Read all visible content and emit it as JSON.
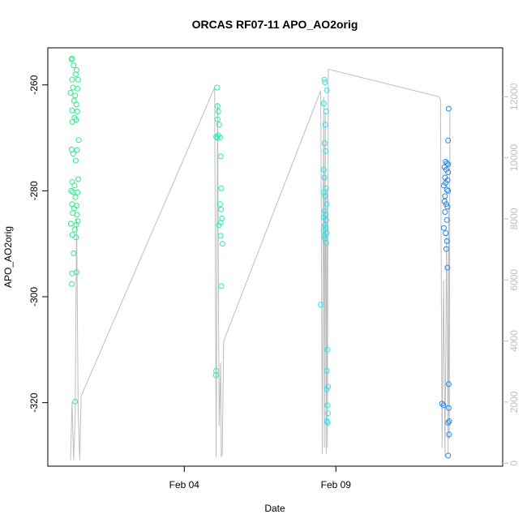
{
  "chart_data": {
    "type": "scatter",
    "title": "ORCAS RF07-11 APO_AO2orig",
    "xlabel": "Date",
    "ylabel": "APO_AO2orig",
    "x_ticks": [
      {
        "label": "Feb 04",
        "x": 4.0
      },
      {
        "label": "Feb 09",
        "x": 9.0
      }
    ],
    "xlim": [
      -0.5,
      14.5
    ],
    "ylim": [
      -332,
      -253
    ],
    "y_ticks": [
      -260,
      -280,
      -300,
      -320
    ],
    "y2lim": [
      -100,
      13600
    ],
    "y2_ticks": [
      0,
      2000,
      4000,
      6000,
      8000,
      10000,
      12000
    ],
    "grid": false,
    "colors": {
      "flight1": "#2BEB8C",
      "flight2": "#2BEBB4",
      "flight3": "#2BE1E8",
      "flight4": "#2A86E0",
      "altitude": "#bdbdbd"
    },
    "series": [
      {
        "color_key": "flight1",
        "points": [
          [
            0.3,
            -255.0
          ],
          [
            0.28,
            -255.2
          ],
          [
            0.35,
            -256.3
          ],
          [
            0.45,
            -257.2
          ],
          [
            0.42,
            -258.0
          ],
          [
            0.3,
            -259.0
          ],
          [
            0.5,
            -259.0
          ],
          [
            0.33,
            -260.5
          ],
          [
            0.48,
            -260.7
          ],
          [
            0.25,
            -261.5
          ],
          [
            0.4,
            -262.0
          ],
          [
            0.36,
            -263.0
          ],
          [
            0.44,
            -263.7
          ],
          [
            0.3,
            -264.8
          ],
          [
            0.47,
            -265.0
          ],
          [
            0.38,
            -266.2
          ],
          [
            0.43,
            -266.6
          ],
          [
            0.31,
            -267.0
          ],
          [
            0.52,
            -270.4
          ],
          [
            0.28,
            -272.2
          ],
          [
            0.46,
            -272.3
          ],
          [
            0.34,
            -273.0
          ],
          [
            0.42,
            -274.3
          ],
          [
            0.5,
            -277.8
          ],
          [
            0.3,
            -278.3
          ],
          [
            0.38,
            -279.0
          ],
          [
            0.27,
            -280.0
          ],
          [
            0.33,
            -280.2
          ],
          [
            0.48,
            -280.3
          ],
          [
            0.41,
            -281.2
          ],
          [
            0.3,
            -282.5
          ],
          [
            0.45,
            -282.8
          ],
          [
            0.37,
            -283.3
          ],
          [
            0.32,
            -284.2
          ],
          [
            0.46,
            -284.5
          ],
          [
            0.49,
            -285.7
          ],
          [
            0.26,
            -286.2
          ],
          [
            0.44,
            -286.4
          ],
          [
            0.39,
            -287.3
          ],
          [
            0.31,
            -288.3
          ],
          [
            0.43,
            -288.8
          ],
          [
            0.35,
            -291.8
          ],
          [
            0.3,
            -295.6
          ],
          [
            0.45,
            -295.4
          ],
          [
            0.29,
            -297.6
          ],
          [
            0.4,
            -319.8
          ]
        ]
      },
      {
        "color_key": "flight2",
        "points": [
          [
            5.08,
            -260.5
          ],
          [
            5.1,
            -264.0
          ],
          [
            5.12,
            -265.0
          ],
          [
            5.1,
            -266.5
          ],
          [
            5.15,
            -267.5
          ],
          [
            5.12,
            -269.5
          ],
          [
            5.05,
            -269.8
          ],
          [
            5.18,
            -269.9
          ],
          [
            5.09,
            -270.0
          ],
          [
            5.2,
            -273.5
          ],
          [
            5.22,
            -279.5
          ],
          [
            5.18,
            -282.5
          ],
          [
            5.21,
            -283.5
          ],
          [
            5.24,
            -285.2
          ],
          [
            5.2,
            -286.0
          ],
          [
            5.14,
            -286.5
          ],
          [
            5.2,
            -288.5
          ],
          [
            5.26,
            -290.0
          ],
          [
            5.22,
            -298.0
          ],
          [
            5.05,
            -314.0
          ],
          [
            5.04,
            -314.8
          ]
        ]
      },
      {
        "color_key": "flight3",
        "points": [
          [
            8.62,
            -259.0
          ],
          [
            8.64,
            -259.5
          ],
          [
            8.7,
            -261.0
          ],
          [
            8.6,
            -263.5
          ],
          [
            8.68,
            -265.0
          ],
          [
            8.65,
            -267.5
          ],
          [
            8.63,
            -271.0
          ],
          [
            8.66,
            -272.5
          ],
          [
            8.6,
            -276.0
          ],
          [
            8.62,
            -277.5
          ],
          [
            8.67,
            -279.5
          ],
          [
            8.6,
            -280.3
          ],
          [
            8.64,
            -281.0
          ],
          [
            8.7,
            -282.5
          ],
          [
            8.62,
            -283.8
          ],
          [
            8.65,
            -284.5
          ],
          [
            8.6,
            -285.0
          ],
          [
            8.68,
            -285.5
          ],
          [
            8.63,
            -286.5
          ],
          [
            8.66,
            -287.0
          ],
          [
            8.6,
            -287.5
          ],
          [
            8.7,
            -288.0
          ],
          [
            8.62,
            -288.5
          ],
          [
            8.64,
            -289.0
          ],
          [
            8.68,
            -289.8
          ],
          [
            8.5,
            -301.5
          ],
          [
            8.72,
            -310.0
          ],
          [
            8.7,
            -314.0
          ],
          [
            8.74,
            -317.0
          ],
          [
            8.7,
            -317.5
          ],
          [
            8.72,
            -320.5
          ],
          [
            8.74,
            -322.0
          ],
          [
            8.7,
            -323.5
          ],
          [
            8.73,
            -323.8
          ]
        ]
      },
      {
        "color_key": "flight4",
        "points": [
          [
            12.72,
            -264.5
          ],
          [
            12.7,
            -270.5
          ],
          [
            12.62,
            -274.5
          ],
          [
            12.66,
            -274.8
          ],
          [
            12.7,
            -275.0
          ],
          [
            12.58,
            -275.5
          ],
          [
            12.64,
            -276.0
          ],
          [
            12.7,
            -276.5
          ],
          [
            12.6,
            -277.5
          ],
          [
            12.68,
            -278.0
          ],
          [
            12.62,
            -278.5
          ],
          [
            12.56,
            -279.0
          ],
          [
            12.66,
            -279.8
          ],
          [
            12.7,
            -280.0
          ],
          [
            12.6,
            -281.0
          ],
          [
            12.58,
            -282.0
          ],
          [
            12.64,
            -282.5
          ],
          [
            12.68,
            -283.0
          ],
          [
            12.6,
            -284.0
          ],
          [
            12.66,
            -285.5
          ],
          [
            12.56,
            -287.0
          ],
          [
            12.62,
            -288.0
          ],
          [
            12.66,
            -289.5
          ],
          [
            12.64,
            -291.0
          ],
          [
            12.68,
            -294.5
          ],
          [
            12.5,
            -320.2
          ],
          [
            12.55,
            -320.5
          ],
          [
            12.72,
            -316.5
          ],
          [
            12.72,
            -321.0
          ],
          [
            12.74,
            -323.5
          ],
          [
            12.7,
            -323.8
          ],
          [
            12.73,
            -326.0
          ],
          [
            12.7,
            -330.0
          ]
        ]
      }
    ],
    "altitude_line": [
      [
        0.25,
        100
      ],
      [
        0.3,
        2000
      ],
      [
        0.35,
        100
      ],
      [
        0.4,
        1500
      ],
      [
        0.45,
        8000
      ],
      [
        0.5,
        1800
      ],
      [
        0.55,
        100
      ],
      [
        0.6,
        2200
      ],
      [
        5.0,
        12300
      ],
      [
        5.05,
        200
      ],
      [
        5.1,
        11800
      ],
      [
        5.15,
        1200
      ],
      [
        5.2,
        3300
      ],
      [
        5.22,
        200
      ],
      [
        5.25,
        300
      ],
      [
        5.3,
        4000
      ],
      [
        8.5,
        12200
      ],
      [
        8.55,
        300
      ],
      [
        8.6,
        12000
      ],
      [
        8.62,
        500
      ],
      [
        8.65,
        11500
      ],
      [
        8.68,
        300
      ],
      [
        8.7,
        9000
      ],
      [
        8.72,
        500
      ],
      [
        8.75,
        12900
      ],
      [
        12.4,
        12000
      ],
      [
        12.45,
        11900
      ],
      [
        12.5,
        500
      ],
      [
        12.55,
        6000
      ],
      [
        12.6,
        200
      ],
      [
        12.65,
        7500
      ],
      [
        12.7,
        300
      ],
      [
        12.72,
        8500
      ],
      [
        12.74,
        800
      ],
      [
        12.76,
        11500
      ]
    ]
  }
}
